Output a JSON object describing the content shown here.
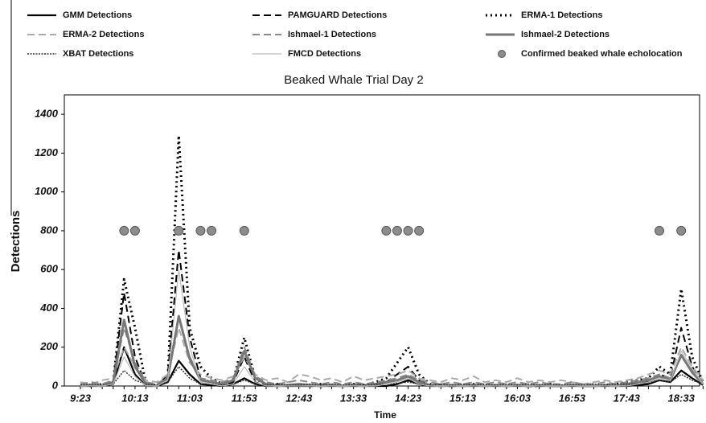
{
  "chart_data": {
    "type": "line",
    "title": "Beaked Whale Trial Day 2",
    "x_label": "Time",
    "y_label": "Detections",
    "categories": [
      "9:23",
      null,
      null,
      null,
      null,
      "10:13",
      null,
      null,
      null,
      null,
      "11:03",
      null,
      null,
      null,
      null,
      "11:53",
      null,
      null,
      null,
      null,
      "12:43",
      null,
      null,
      null,
      null,
      "13:33",
      null,
      null,
      null,
      null,
      "14:23",
      null,
      null,
      null,
      null,
      "15:13",
      null,
      null,
      null,
      null,
      "16:03",
      null,
      null,
      null,
      null,
      "16:53",
      null,
      null,
      null,
      null,
      "17:43",
      null,
      null,
      null,
      null,
      "18:33",
      null,
      null
    ],
    "ylim": [
      0,
      1500
    ],
    "yticks": [
      0,
      200,
      400,
      600,
      800,
      1000,
      1200,
      1400
    ],
    "grid": false,
    "series": [
      {
        "name": "GMM Detections",
        "color": "#000000",
        "style": "solid",
        "values": [
          0,
          0,
          0,
          10,
          200,
          60,
          0,
          0,
          20,
          130,
          60,
          10,
          5,
          0,
          10,
          40,
          10,
          0,
          0,
          0,
          0,
          0,
          0,
          0,
          0,
          0,
          0,
          0,
          0,
          10,
          30,
          10,
          0,
          0,
          0,
          0,
          0,
          0,
          0,
          0,
          0,
          0,
          0,
          0,
          0,
          0,
          0,
          0,
          0,
          0,
          0,
          5,
          10,
          30,
          20,
          80,
          40,
          5
        ]
      },
      {
        "name": "PAMGUARD Detections",
        "color": "#000000",
        "style": "dashed",
        "values": [
          0,
          0,
          5,
          20,
          480,
          150,
          5,
          0,
          60,
          700,
          250,
          40,
          20,
          5,
          20,
          150,
          20,
          0,
          5,
          0,
          0,
          0,
          5,
          0,
          0,
          0,
          5,
          0,
          20,
          60,
          100,
          30,
          5,
          0,
          0,
          0,
          0,
          0,
          0,
          0,
          0,
          0,
          0,
          0,
          0,
          0,
          0,
          0,
          0,
          0,
          5,
          10,
          20,
          60,
          40,
          300,
          100,
          10
        ]
      },
      {
        "name": "ERMA-1 Detections",
        "color": "#000000",
        "style": "dotted",
        "values": [
          5,
          0,
          10,
          20,
          550,
          300,
          10,
          5,
          40,
          1290,
          300,
          100,
          40,
          10,
          30,
          250,
          40,
          5,
          10,
          0,
          5,
          0,
          10,
          5,
          0,
          10,
          5,
          20,
          40,
          120,
          200,
          60,
          10,
          5,
          0,
          5,
          10,
          0,
          5,
          0,
          5,
          0,
          0,
          10,
          0,
          5,
          0,
          0,
          5,
          10,
          20,
          30,
          40,
          100,
          60,
          500,
          150,
          20
        ]
      },
      {
        "name": "ERMA-2 Detections",
        "color": "#aaaaaa",
        "style": "dashed",
        "values": [
          20,
          10,
          30,
          40,
          200,
          100,
          30,
          20,
          60,
          300,
          120,
          60,
          40,
          30,
          50,
          150,
          60,
          30,
          40,
          20,
          60,
          50,
          30,
          40,
          20,
          50,
          30,
          40,
          50,
          60,
          80,
          40,
          30,
          20,
          40,
          30,
          50,
          20,
          30,
          20,
          40,
          20,
          30,
          20,
          30,
          20,
          10,
          20,
          30,
          20,
          30,
          40,
          60,
          80,
          60,
          200,
          100,
          30
        ]
      },
      {
        "name": "Ishmael-1 Detections",
        "color": "#888888",
        "style": "dashed",
        "values": [
          10,
          20,
          10,
          30,
          300,
          120,
          20,
          10,
          50,
          350,
          150,
          40,
          30,
          20,
          40,
          200,
          50,
          20,
          10,
          20,
          30,
          20,
          10,
          20,
          10,
          20,
          10,
          20,
          30,
          40,
          60,
          30,
          20,
          10,
          20,
          10,
          20,
          10,
          20,
          10,
          20,
          10,
          20,
          10,
          10,
          20,
          10,
          10,
          20,
          10,
          20,
          30,
          40,
          60,
          40,
          150,
          80,
          20
        ]
      },
      {
        "name": "Ishmael-2 Detections",
        "color": "#777777",
        "style": "thick",
        "values": [
          0,
          5,
          0,
          20,
          340,
          100,
          10,
          0,
          40,
          360,
          140,
          30,
          20,
          10,
          30,
          180,
          40,
          10,
          0,
          5,
          10,
          5,
          0,
          5,
          0,
          5,
          0,
          10,
          20,
          30,
          50,
          20,
          5,
          0,
          5,
          0,
          5,
          0,
          5,
          0,
          5,
          0,
          5,
          0,
          0,
          5,
          0,
          0,
          5,
          0,
          10,
          20,
          30,
          50,
          30,
          160,
          70,
          10
        ]
      },
      {
        "name": "XBAT Detections",
        "color": "#333333",
        "style": "wavy",
        "values": [
          5,
          10,
          5,
          10,
          80,
          30,
          10,
          5,
          20,
          100,
          40,
          10,
          10,
          5,
          10,
          30,
          10,
          5,
          10,
          5,
          5,
          10,
          5,
          10,
          5,
          10,
          5,
          10,
          10,
          15,
          20,
          10,
          5,
          10,
          5,
          10,
          5,
          10,
          5,
          10,
          5,
          10,
          5,
          10,
          5,
          10,
          5,
          10,
          5,
          10,
          10,
          10,
          20,
          30,
          20,
          60,
          30,
          10
        ]
      },
      {
        "name": "FMCD Detections",
        "color": "#bbbbbb",
        "style": "thin",
        "values": [
          0,
          0,
          0,
          10,
          150,
          50,
          0,
          0,
          30,
          600,
          200,
          20,
          10,
          0,
          10,
          100,
          20,
          0,
          0,
          0,
          0,
          0,
          0,
          0,
          0,
          0,
          0,
          0,
          10,
          20,
          40,
          10,
          0,
          0,
          0,
          0,
          0,
          0,
          0,
          0,
          0,
          0,
          0,
          0,
          0,
          0,
          0,
          0,
          0,
          0,
          0,
          10,
          20,
          40,
          30,
          180,
          90,
          10
        ]
      },
      {
        "name": "Confirmed beaked whale echolocation",
        "color": "#8c8c8c",
        "style": "markers",
        "values": [
          null,
          null,
          null,
          null,
          800,
          800,
          null,
          null,
          null,
          800,
          null,
          800,
          800,
          null,
          null,
          800,
          null,
          null,
          null,
          null,
          null,
          null,
          null,
          null,
          null,
          null,
          null,
          null,
          800,
          800,
          800,
          800,
          null,
          null,
          null,
          null,
          null,
          null,
          null,
          null,
          null,
          null,
          null,
          null,
          null,
          null,
          null,
          null,
          null,
          null,
          null,
          null,
          null,
          800,
          null,
          800,
          null,
          null
        ]
      }
    ]
  }
}
